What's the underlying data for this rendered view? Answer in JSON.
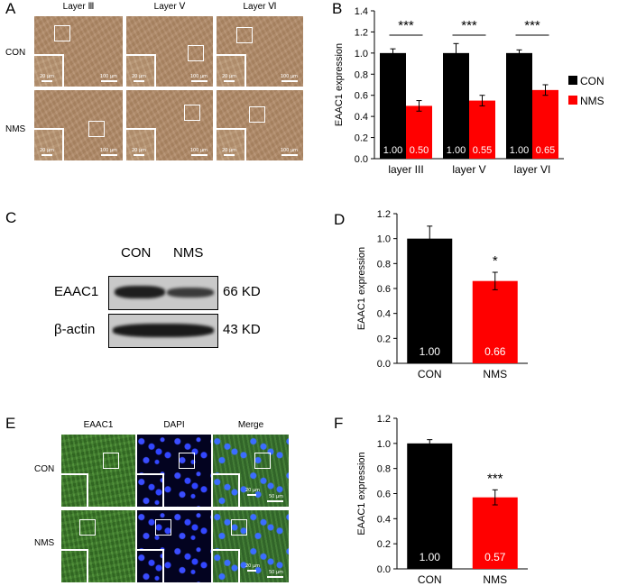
{
  "panels": {
    "A": {
      "letter": "A",
      "columns": [
        "Layer Ⅲ",
        "Layer Ⅴ",
        "Layer Ⅵ"
      ],
      "rows": [
        "CON",
        "NMS"
      ],
      "scale_main": "100 μm",
      "scale_inset": "20 μm"
    },
    "C": {
      "letter": "C",
      "lanes": [
        "CON",
        "NMS"
      ],
      "proteins": [
        {
          "name": "EAAC1",
          "size": "66 KD"
        },
        {
          "name": "β-actin",
          "size": "43 KD"
        }
      ]
    },
    "E": {
      "letter": "E",
      "columns": [
        "EAAC1",
        "DAPI",
        "Merge"
      ],
      "rows": [
        "CON",
        "NMS"
      ],
      "scale_main": "50 μm",
      "scale_inset": "20 μm"
    }
  },
  "legend": {
    "items": [
      {
        "label": "CON",
        "color": "#000000"
      },
      {
        "label": "NMS",
        "color": "#ff0000"
      }
    ]
  },
  "chart_data": [
    {
      "id": "B",
      "letter": "B",
      "type": "bar",
      "ylabel": "EAAC1 expression",
      "ylim": [
        0,
        1.4
      ],
      "yticks": [
        "0.0",
        "0.2",
        "0.4",
        "0.6",
        "0.8",
        "1.0",
        "1.2",
        "1.4"
      ],
      "categories": [
        "layer III",
        "layer V",
        "layer VI"
      ],
      "series": [
        {
          "name": "CON",
          "color": "#000000",
          "values": [
            1.0,
            1.0,
            1.0
          ],
          "errors": [
            0.04,
            0.09,
            0.03
          ],
          "labels": [
            "1.00",
            "1.00",
            "1.00"
          ]
        },
        {
          "name": "NMS",
          "color": "#ff0000",
          "values": [
            0.5,
            0.55,
            0.65
          ],
          "errors": [
            0.05,
            0.05,
            0.05
          ],
          "labels": [
            "0.50",
            "0.55",
            "0.65"
          ]
        }
      ],
      "significance": [
        "***",
        "***",
        "***"
      ],
      "legend": "right",
      "grid": false
    },
    {
      "id": "D",
      "letter": "D",
      "type": "bar",
      "ylabel": "EAAC1 expression",
      "ylim": [
        0,
        1.2
      ],
      "yticks": [
        "0.0",
        "0.2",
        "0.4",
        "0.6",
        "0.8",
        "1.0",
        "1.2"
      ],
      "categories": [
        "CON",
        "NMS"
      ],
      "values": [
        1.0,
        0.66
      ],
      "errors": [
        0.1,
        0.07
      ],
      "colors": [
        "#000000",
        "#ff0000"
      ],
      "labels": [
        "1.00",
        "0.66"
      ],
      "significance": "*",
      "grid": false
    },
    {
      "id": "F",
      "letter": "F",
      "type": "bar",
      "ylabel": "EAAC1 expression",
      "ylim": [
        0,
        1.2
      ],
      "yticks": [
        "0.0",
        "0.2",
        "0.4",
        "0.6",
        "0.8",
        "1.0",
        "1.2"
      ],
      "categories": [
        "CON",
        "NMS"
      ],
      "values": [
        1.0,
        0.57
      ],
      "errors": [
        0.03,
        0.06
      ],
      "colors": [
        "#000000",
        "#ff0000"
      ],
      "labels": [
        "1.00",
        "0.57"
      ],
      "significance": "***",
      "grid": false
    }
  ]
}
